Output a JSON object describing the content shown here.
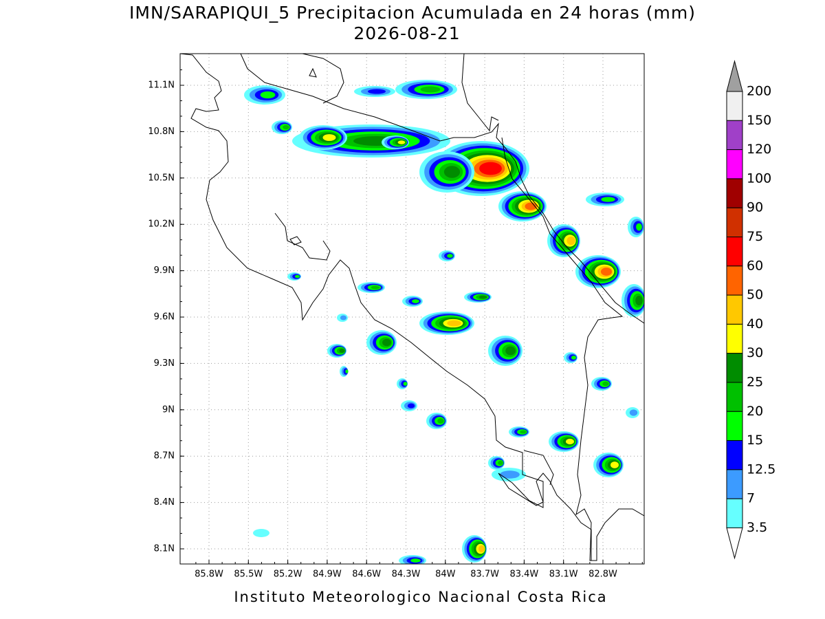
{
  "header": {
    "title": "IMN/SARAPIQUI_5 Precipitacion Acumulada en 24 horas (mm)",
    "subtitle": "2026-08-21"
  },
  "map": {
    "lat_labels": [
      "11.1N",
      "10.8N",
      "10.5N",
      "10.2N",
      "9.9N",
      "9.6N",
      "9.3N",
      "9N",
      "8.7N",
      "8.4N",
      "8.1N"
    ],
    "lon_labels": [
      "85.8W",
      "85.5W",
      "85.2W",
      "84.9W",
      "84.6W",
      "84.3W",
      "84W",
      "83.7W",
      "83.4W",
      "83.1W",
      "82.8W"
    ]
  },
  "colorbar": {
    "labels": [
      "200",
      "150",
      "120",
      "100",
      "90",
      "75",
      "60",
      "50",
      "40",
      "30",
      "25",
      "20",
      "15",
      "12.5",
      "7",
      "3.5"
    ],
    "colors": [
      "#a0a0a0",
      "#f0f0f0",
      "#a040c8",
      "#ff00ff",
      "#a00000",
      "#d03000",
      "#ff0000",
      "#ff6400",
      "#ffc800",
      "#ffff00",
      "#008c00",
      "#00c000",
      "#00ff00",
      "#0000ff",
      "#3c9bff",
      "#66ffff",
      "#ffffff"
    ]
  },
  "footer": "Instituto Meteorologico Nacional Costa Rica"
}
